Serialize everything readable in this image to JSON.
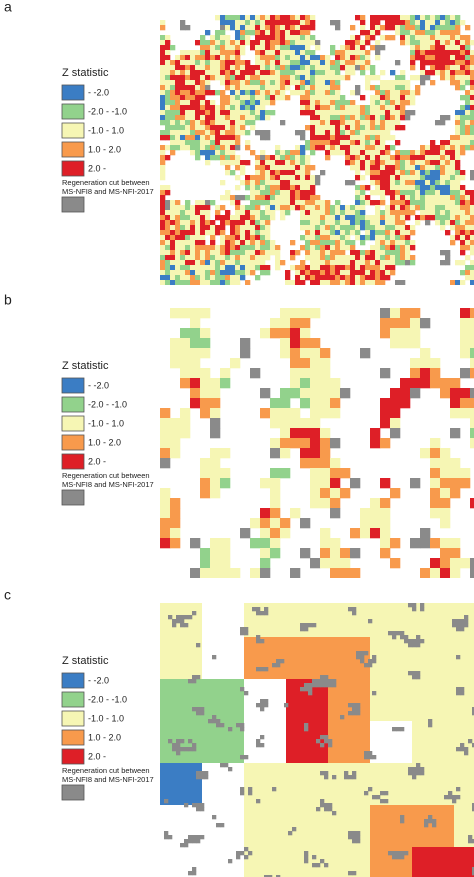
{
  "panels": [
    {
      "label": "a"
    },
    {
      "label": "b"
    },
    {
      "label": "c"
    }
  ],
  "legend": {
    "title": "Z statistic",
    "items": [
      {
        "label": "- -2.0",
        "color": "#3b7dc4"
      },
      {
        "label": "-2.0 - -1.0",
        "color": "#92d28c"
      },
      {
        "label": "-1.0 - 1.0",
        "color": "#f6f6b4"
      },
      {
        "label": "1.0 - 2.0",
        "color": "#f89a4c"
      },
      {
        "label": "2.0 -",
        "color": "#de1f27"
      }
    ],
    "note": [
      "Regeneration cut between",
      "MS-NFI8 and MS-NFI-2017"
    ],
    "note_color": "#8a8a8a"
  }
}
